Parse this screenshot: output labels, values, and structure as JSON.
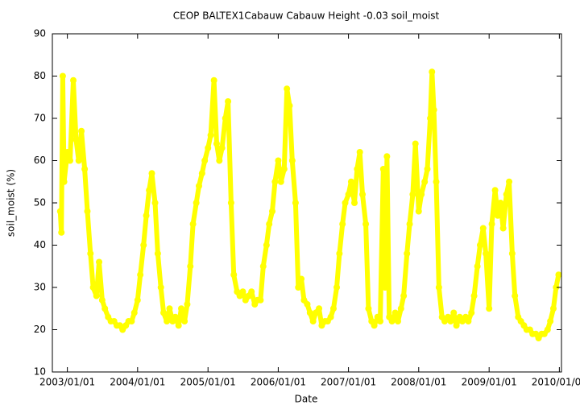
{
  "chart_data": {
    "type": "scatter",
    "title": "CEOP BALTEX1Cabauw Cabauw Height -0.03 soil_moist",
    "x_label": "Date",
    "y_label": "soil_moist (%)",
    "color": "#ffff00",
    "xlim": [
      "2002/10/15",
      "2010/01/12"
    ],
    "xticks": [
      "2003/01/01",
      "2004/01/01",
      "2005/01/01",
      "2006/01/01",
      "2007/01/01",
      "2008/01/01",
      "2009/01/01",
      "2010/01/01"
    ],
    "ylim": [
      10,
      90
    ],
    "yticks": [
      10,
      20,
      30,
      40,
      50,
      60,
      70,
      80,
      90
    ],
    "grid": false,
    "x": [
      "2002/11/25",
      "2002/12/01",
      "2002/12/08",
      "2002/12/15",
      "2003/01/01",
      "2003/01/15",
      "2003/02/01",
      "2003/02/15",
      "2003/03/01",
      "2003/03/15",
      "2003/04/01",
      "2003/04/15",
      "2003/05/01",
      "2003/05/15",
      "2003/06/01",
      "2003/06/15",
      "2003/07/01",
      "2003/07/15",
      "2003/08/01",
      "2003/08/15",
      "2003/09/01",
      "2003/09/15",
      "2003/10/01",
      "2003/10/15",
      "2003/11/01",
      "2003/11/15",
      "2003/12/01",
      "2003/12/15",
      "2004/01/01",
      "2004/01/15",
      "2004/02/01",
      "2004/02/15",
      "2004/03/01",
      "2004/03/15",
      "2004/04/01",
      "2004/04/15",
      "2004/05/01",
      "2004/05/15",
      "2004/06/01",
      "2004/06/15",
      "2004/07/01",
      "2004/07/15",
      "2004/08/01",
      "2004/08/15",
      "2004/09/01",
      "2004/09/15",
      "2004/10/01",
      "2004/10/15",
      "2004/11/01",
      "2004/11/15",
      "2004/12/01",
      "2004/12/15",
      "2005/01/01",
      "2005/01/15",
      "2005/02/01",
      "2005/02/15",
      "2005/03/01",
      "2005/03/15",
      "2005/04/01",
      "2005/04/15",
      "2005/05/01",
      "2005/05/15",
      "2005/06/01",
      "2005/06/15",
      "2005/07/01",
      "2005/07/15",
      "2005/08/01",
      "2005/08/15",
      "2005/09/01",
      "2005/09/15",
      "2005/10/01",
      "2005/10/15",
      "2005/11/01",
      "2005/11/15",
      "2005/12/01",
      "2005/12/15",
      "2006/01/01",
      "2006/01/15",
      "2006/02/01",
      "2006/02/15",
      "2006/03/01",
      "2006/03/15",
      "2006/04/01",
      "2006/04/15",
      "2006/05/01",
      "2006/05/15",
      "2006/06/01",
      "2006/06/15",
      "2006/07/01",
      "2006/07/15",
      "2006/08/01",
      "2006/08/15",
      "2006/09/01",
      "2006/09/15",
      "2006/10/01",
      "2006/10/15",
      "2006/11/01",
      "2006/11/15",
      "2006/12/01",
      "2006/12/15",
      "2007/01/01",
      "2007/01/15",
      "2007/02/01",
      "2007/02/15",
      "2007/03/01",
      "2007/03/15",
      "2007/04/01",
      "2007/04/15",
      "2007/05/01",
      "2007/05/15",
      "2007/06/01",
      "2007/06/15",
      "2007/07/01",
      "2007/07/10",
      "2007/07/20",
      "2007/08/01",
      "2007/08/15",
      "2007/09/01",
      "2007/09/15",
      "2007/10/01",
      "2007/10/15",
      "2007/11/01",
      "2007/11/15",
      "2007/12/01",
      "2007/12/15",
      "2008/01/01",
      "2008/01/15",
      "2008/02/01",
      "2008/02/15",
      "2008/03/01",
      "2008/03/10",
      "2008/03/20",
      "2008/04/01",
      "2008/04/15",
      "2008/05/01",
      "2008/05/15",
      "2008/06/01",
      "2008/06/15",
      "2008/07/01",
      "2008/07/15",
      "2008/08/01",
      "2008/08/15",
      "2008/09/01",
      "2008/09/15",
      "2008/10/01",
      "2008/10/15",
      "2008/11/01",
      "2008/11/15",
      "2008/12/01",
      "2008/12/15",
      "2009/01/01",
      "2009/01/15",
      "2009/02/01",
      "2009/02/15",
      "2009/03/01",
      "2009/03/15",
      "2009/04/01",
      "2009/04/15",
      "2009/05/01",
      "2009/05/15",
      "2009/06/01",
      "2009/06/15",
      "2009/07/01",
      "2009/07/15",
      "2009/08/01",
      "2009/08/15",
      "2009/09/01",
      "2009/09/15",
      "2009/10/01",
      "2009/10/15",
      "2009/11/01",
      "2009/11/15",
      "2009/12/01",
      "2009/12/15",
      "2009/12/28"
    ],
    "values": [
      48,
      43,
      80,
      55,
      62,
      60,
      79,
      65,
      60,
      67,
      58,
      48,
      38,
      30,
      28,
      36,
      27,
      25,
      23,
      22,
      22,
      21,
      21,
      20,
      21,
      22,
      22,
      24,
      27,
      33,
      40,
      47,
      53,
      57,
      50,
      38,
      30,
      24,
      22,
      25,
      22,
      23,
      21,
      25,
      22,
      26,
      35,
      45,
      50,
      54,
      57,
      60,
      63,
      66,
      79,
      64,
      60,
      63,
      70,
      74,
      50,
      33,
      29,
      28,
      29,
      27,
      28,
      29,
      26,
      27,
      27,
      35,
      40,
      45,
      48,
      55,
      60,
      55,
      58,
      77,
      73,
      60,
      50,
      30,
      32,
      27,
      26,
      24,
      22,
      24,
      25,
      21,
      22,
      22,
      23,
      25,
      30,
      38,
      45,
      50,
      52,
      55,
      50,
      58,
      62,
      52,
      45,
      25,
      22,
      21,
      23,
      22,
      58,
      30,
      61,
      23,
      22,
      24,
      22,
      25,
      28,
      38,
      45,
      52,
      64,
      48,
      52,
      55,
      58,
      70,
      81,
      72,
      55,
      30,
      23,
      22,
      23,
      22,
      24,
      21,
      23,
      22,
      23,
      22,
      24,
      28,
      35,
      40,
      44,
      38,
      25,
      45,
      53,
      47,
      50,
      44,
      52,
      55,
      38,
      28,
      23,
      22,
      21,
      20,
      20,
      19,
      19,
      18,
      19,
      19,
      20,
      22,
      25,
      30,
      33
    ]
  }
}
